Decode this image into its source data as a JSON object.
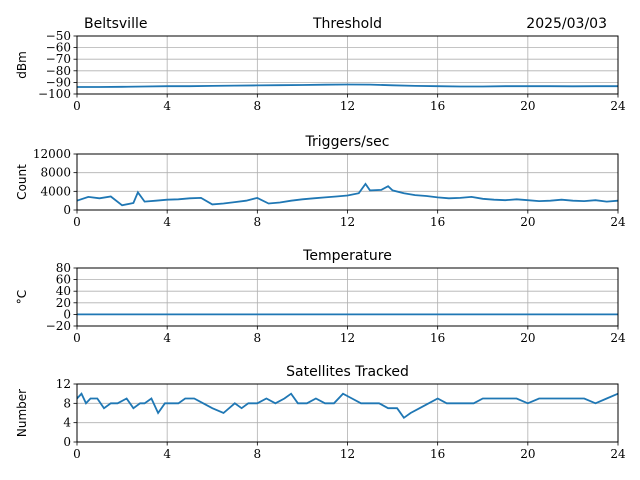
{
  "header": {
    "location": "Beltsville",
    "date": "2025/03/03"
  },
  "colors": {
    "series": "#1f77b4",
    "grid": "#b0b0b0",
    "axes": "#000000"
  },
  "chart_data": [
    {
      "type": "line",
      "title": "Threshold",
      "xlabel": "",
      "ylabel": "dBm",
      "xlim": [
        0,
        24
      ],
      "ylim": [
        -100,
        -50
      ],
      "xticks": [
        0,
        4,
        8,
        12,
        16,
        20,
        24
      ],
      "yticks": [
        -100,
        -90,
        -80,
        -70,
        -60,
        -50
      ],
      "grid": true,
      "series": [
        {
          "x": [
            0,
            1,
            2,
            3,
            4,
            5,
            6,
            7,
            8,
            9,
            10,
            11,
            12,
            13,
            14,
            15,
            16,
            17,
            18,
            19,
            20,
            21,
            22,
            23,
            24
          ],
          "values": [
            -94,
            -94,
            -93.8,
            -93.5,
            -93.3,
            -93.3,
            -93,
            -92.8,
            -92.6,
            -92.4,
            -92.2,
            -92,
            -91.8,
            -91.9,
            -92.5,
            -93,
            -93.3,
            -93.5,
            -93.5,
            -93.3,
            -93.3,
            -93.3,
            -93.4,
            -93.3,
            -93.3
          ]
        }
      ]
    },
    {
      "type": "line",
      "title": "Triggers/sec",
      "xlabel": "",
      "ylabel": "Count",
      "xlim": [
        0,
        24
      ],
      "ylim": [
        0,
        12000
      ],
      "xticks": [
        0,
        4,
        8,
        12,
        16,
        20,
        24
      ],
      "yticks": [
        0,
        4000,
        8000,
        12000
      ],
      "grid": true,
      "series": [
        {
          "x": [
            0,
            0.5,
            1,
            1.5,
            2,
            2.5,
            2.7,
            3,
            3.5,
            4,
            4.5,
            5,
            5.5,
            6,
            6.5,
            7,
            7.5,
            8,
            8.5,
            9,
            9.5,
            10,
            10.5,
            11,
            11.5,
            12,
            12.5,
            12.8,
            13,
            13.5,
            13.8,
            14,
            14.5,
            15,
            15.5,
            16,
            16.5,
            17,
            17.5,
            18,
            18.5,
            19,
            19.5,
            20,
            20.5,
            21,
            21.5,
            22,
            22.5,
            23,
            23.5,
            24
          ],
          "values": [
            2000,
            2800,
            2500,
            2900,
            1000,
            1500,
            3800,
            1800,
            2000,
            2200,
            2300,
            2500,
            2600,
            1200,
            1400,
            1700,
            2000,
            2600,
            1400,
            1600,
            2000,
            2300,
            2500,
            2700,
            2900,
            3100,
            3600,
            5600,
            4200,
            4300,
            5100,
            4200,
            3600,
            3200,
            3000,
            2700,
            2500,
            2600,
            2800,
            2400,
            2200,
            2100,
            2300,
            2100,
            1900,
            2000,
            2200,
            2000,
            1900,
            2100,
            1800,
            2000
          ]
        }
      ]
    },
    {
      "type": "line",
      "title": "Temperature",
      "xlabel": "",
      "ylabel": "°C",
      "xlim": [
        0,
        24
      ],
      "ylim": [
        -20,
        80
      ],
      "xticks": [
        0,
        4,
        8,
        12,
        16,
        20,
        24
      ],
      "yticks": [
        -20,
        0,
        20,
        40,
        60,
        80
      ],
      "grid": true,
      "series": [
        {
          "x": [
            0,
            24
          ],
          "values": [
            0,
            0
          ]
        }
      ]
    },
    {
      "type": "line",
      "title": "Satellites Tracked",
      "xlabel": "",
      "ylabel": "Number",
      "xlim": [
        0,
        24
      ],
      "ylim": [
        0,
        12
      ],
      "xticks": [
        0,
        4,
        8,
        12,
        16,
        20,
        24
      ],
      "yticks": [
        0,
        4,
        8,
        12
      ],
      "grid": true,
      "series": [
        {
          "x": [
            0,
            0.2,
            0.4,
            0.6,
            0.9,
            1.2,
            1.5,
            1.8,
            2.2,
            2.5,
            2.8,
            3.0,
            3.3,
            3.6,
            3.9,
            4.2,
            4.5,
            4.8,
            5.2,
            5.6,
            6.0,
            6.5,
            7.0,
            7.3,
            7.6,
            8.0,
            8.4,
            8.8,
            9.2,
            9.5,
            9.8,
            10.2,
            10.6,
            11.0,
            11.4,
            11.8,
            12.2,
            12.6,
            13.0,
            13.4,
            13.8,
            14.2,
            14.5,
            14.8,
            15.2,
            15.6,
            16.0,
            16.4,
            16.8,
            17.2,
            17.6,
            18.0,
            18.5,
            19.0,
            19.5,
            20.0,
            20.5,
            21.0,
            21.5,
            22.0,
            22.5,
            23.0,
            23.5,
            24
          ],
          "values": [
            9,
            10,
            8,
            9,
            9,
            7,
            8,
            8,
            9,
            7,
            8,
            8,
            9,
            6,
            8,
            8,
            8,
            9,
            9,
            8,
            7,
            6,
            8,
            7,
            8,
            8,
            9,
            8,
            9,
            10,
            8,
            8,
            9,
            8,
            8,
            10,
            9,
            8,
            8,
            8,
            7,
            7,
            5,
            6,
            7,
            8,
            9,
            8,
            8,
            8,
            8,
            9,
            9,
            9,
            9,
            8,
            9,
            9,
            9,
            9,
            9,
            8,
            9,
            10
          ]
        }
      ]
    }
  ]
}
